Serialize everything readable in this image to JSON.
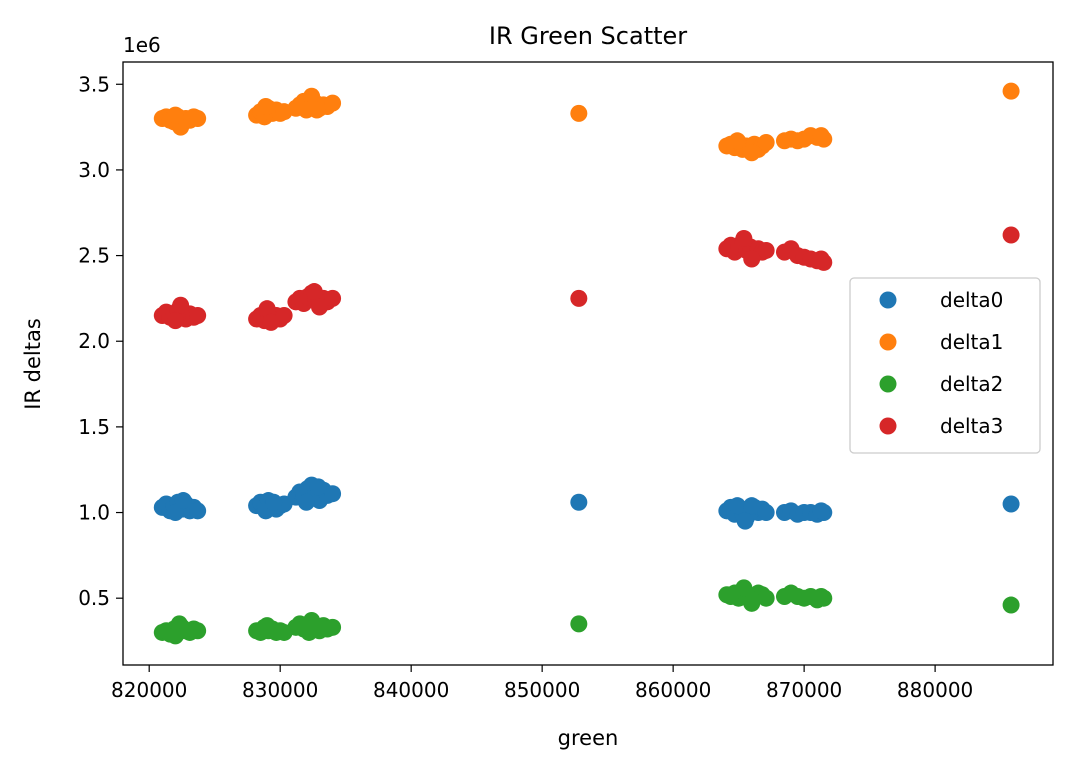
{
  "chart_data": {
    "type": "scatter",
    "title": "IR Green Scatter",
    "xlabel": "green",
    "ylabel": "IR deltas",
    "y_offset_text": "1e6",
    "xlim": [
      818000,
      889000
    ],
    "ylim": [
      0.11,
      3.63
    ],
    "x_ticks": [
      820000,
      830000,
      840000,
      850000,
      860000,
      870000,
      880000
    ],
    "x_tick_labels": [
      "820000",
      "830000",
      "840000",
      "850000",
      "860000",
      "870000",
      "880000"
    ],
    "y_ticks": [
      0.5,
      1.0,
      1.5,
      2.0,
      2.5,
      3.0,
      3.5
    ],
    "y_tick_labels": [
      "0.5",
      "1.0",
      "1.5",
      "2.0",
      "2.5",
      "3.0",
      "3.5"
    ],
    "grid": false,
    "legend_position": "center-right",
    "series": [
      {
        "name": "delta0",
        "color": "#1f77b4",
        "points": [
          [
            821000,
            1.03
          ],
          [
            821300,
            1.05
          ],
          [
            821600,
            1.01
          ],
          [
            821900,
            1.04
          ],
          [
            822200,
            1.06
          ],
          [
            822500,
            1.02
          ],
          [
            822800,
            1.05
          ],
          [
            823100,
            1.01
          ],
          [
            823400,
            1.03
          ],
          [
            823700,
            1.01
          ],
          [
            822000,
            1.0
          ],
          [
            822600,
            1.07
          ],
          [
            828200,
            1.04
          ],
          [
            828500,
            1.06
          ],
          [
            828800,
            1.03
          ],
          [
            829100,
            1.07
          ],
          [
            829400,
            1.05
          ],
          [
            829700,
            1.02
          ],
          [
            830000,
            1.04
          ],
          [
            830300,
            1.05
          ],
          [
            828900,
            1.01
          ],
          [
            829500,
            1.06
          ],
          [
            831200,
            1.09
          ],
          [
            831500,
            1.12
          ],
          [
            831800,
            1.1
          ],
          [
            832100,
            1.14
          ],
          [
            832400,
            1.16
          ],
          [
            832700,
            1.11
          ],
          [
            833000,
            1.07
          ],
          [
            833300,
            1.13
          ],
          [
            833600,
            1.1
          ],
          [
            834000,
            1.11
          ],
          [
            832000,
            1.06
          ],
          [
            832900,
            1.15
          ],
          [
            852800,
            1.06
          ],
          [
            864100,
            1.01
          ],
          [
            864400,
            1.03
          ],
          [
            864700,
            0.99
          ],
          [
            865000,
            1.02
          ],
          [
            865300,
            1.0
          ],
          [
            865600,
            0.97
          ],
          [
            865900,
            1.01
          ],
          [
            866200,
            1.03
          ],
          [
            866500,
            1.0
          ],
          [
            866800,
            1.02
          ],
          [
            867100,
            1.0
          ],
          [
            865500,
            0.95
          ],
          [
            864900,
            1.04
          ],
          [
            866000,
            1.04
          ],
          [
            868500,
            1.0
          ],
          [
            869000,
            1.01
          ],
          [
            869500,
            0.99
          ],
          [
            870000,
            1.0
          ],
          [
            870500,
            1.0
          ],
          [
            871000,
            0.99
          ],
          [
            871500,
            1.0
          ],
          [
            871300,
            1.01
          ],
          [
            885800,
            1.05
          ]
        ]
      },
      {
        "name": "delta1",
        "color": "#ff7f0e",
        "points": [
          [
            821000,
            3.3
          ],
          [
            821300,
            3.31
          ],
          [
            821600,
            3.29
          ],
          [
            821900,
            3.28
          ],
          [
            822200,
            3.31
          ],
          [
            822500,
            3.27
          ],
          [
            822800,
            3.3
          ],
          [
            823100,
            3.29
          ],
          [
            823400,
            3.31
          ],
          [
            823700,
            3.3
          ],
          [
            822400,
            3.25
          ],
          [
            822000,
            3.32
          ],
          [
            828200,
            3.32
          ],
          [
            828500,
            3.34
          ],
          [
            828800,
            3.31
          ],
          [
            829100,
            3.36
          ],
          [
            829400,
            3.33
          ],
          [
            829700,
            3.35
          ],
          [
            830000,
            3.33
          ],
          [
            830300,
            3.34
          ],
          [
            828900,
            3.37
          ],
          [
            831200,
            3.36
          ],
          [
            831500,
            3.38
          ],
          [
            831800,
            3.4
          ],
          [
            832100,
            3.37
          ],
          [
            832400,
            3.43
          ],
          [
            832700,
            3.39
          ],
          [
            833000,
            3.36
          ],
          [
            833300,
            3.38
          ],
          [
            833600,
            3.37
          ],
          [
            834000,
            3.39
          ],
          [
            832000,
            3.35
          ],
          [
            832800,
            3.35
          ],
          [
            852800,
            3.33
          ],
          [
            864100,
            3.14
          ],
          [
            864400,
            3.15
          ],
          [
            864700,
            3.13
          ],
          [
            865000,
            3.16
          ],
          [
            865300,
            3.12
          ],
          [
            865600,
            3.14
          ],
          [
            865900,
            3.13
          ],
          [
            866200,
            3.15
          ],
          [
            866500,
            3.12
          ],
          [
            866800,
            3.14
          ],
          [
            867100,
            3.16
          ],
          [
            864900,
            3.17
          ],
          [
            866000,
            3.1
          ],
          [
            868500,
            3.17
          ],
          [
            869000,
            3.18
          ],
          [
            869500,
            3.17
          ],
          [
            870000,
            3.18
          ],
          [
            870500,
            3.2
          ],
          [
            871000,
            3.19
          ],
          [
            871500,
            3.18
          ],
          [
            871300,
            3.2
          ],
          [
            885800,
            3.46
          ]
        ]
      },
      {
        "name": "delta2",
        "color": "#2ca02c",
        "points": [
          [
            821000,
            0.3
          ],
          [
            821300,
            0.31
          ],
          [
            821600,
            0.29
          ],
          [
            821900,
            0.32
          ],
          [
            822200,
            0.3
          ],
          [
            822500,
            0.33
          ],
          [
            822800,
            0.31
          ],
          [
            823100,
            0.3
          ],
          [
            823400,
            0.32
          ],
          [
            823700,
            0.31
          ],
          [
            822300,
            0.35
          ],
          [
            822000,
            0.28
          ],
          [
            828200,
            0.31
          ],
          [
            828500,
            0.3
          ],
          [
            828800,
            0.33
          ],
          [
            829100,
            0.31
          ],
          [
            829400,
            0.32
          ],
          [
            829700,
            0.3
          ],
          [
            830000,
            0.31
          ],
          [
            830300,
            0.3
          ],
          [
            829000,
            0.34
          ],
          [
            831200,
            0.33
          ],
          [
            831500,
            0.35
          ],
          [
            831800,
            0.32
          ],
          [
            832100,
            0.34
          ],
          [
            832400,
            0.37
          ],
          [
            832700,
            0.33
          ],
          [
            833000,
            0.31
          ],
          [
            833300,
            0.34
          ],
          [
            833600,
            0.32
          ],
          [
            834000,
            0.33
          ],
          [
            832200,
            0.3
          ],
          [
            852800,
            0.35
          ],
          [
            864100,
            0.52
          ],
          [
            864400,
            0.51
          ],
          [
            864700,
            0.53
          ],
          [
            865000,
            0.5
          ],
          [
            865300,
            0.54
          ],
          [
            865600,
            0.52
          ],
          [
            865900,
            0.49
          ],
          [
            866200,
            0.51
          ],
          [
            866500,
            0.53
          ],
          [
            866800,
            0.52
          ],
          [
            867100,
            0.5
          ],
          [
            865400,
            0.56
          ],
          [
            866000,
            0.47
          ],
          [
            868500,
            0.51
          ],
          [
            869000,
            0.53
          ],
          [
            869500,
            0.51
          ],
          [
            870000,
            0.5
          ],
          [
            870500,
            0.51
          ],
          [
            871000,
            0.49
          ],
          [
            871500,
            0.5
          ],
          [
            871300,
            0.51
          ],
          [
            885800,
            0.46
          ]
        ]
      },
      {
        "name": "delta3",
        "color": "#d62728",
        "points": [
          [
            821000,
            2.15
          ],
          [
            821300,
            2.17
          ],
          [
            821600,
            2.14
          ],
          [
            821900,
            2.16
          ],
          [
            822200,
            2.18
          ],
          [
            822500,
            2.15
          ],
          [
            822800,
            2.13
          ],
          [
            823100,
            2.16
          ],
          [
            823400,
            2.14
          ],
          [
            823700,
            2.15
          ],
          [
            822400,
            2.21
          ],
          [
            822000,
            2.12
          ],
          [
            828200,
            2.13
          ],
          [
            828500,
            2.15
          ],
          [
            828800,
            2.12
          ],
          [
            829100,
            2.16
          ],
          [
            829400,
            2.14
          ],
          [
            829700,
            2.15
          ],
          [
            830000,
            2.13
          ],
          [
            830300,
            2.15
          ],
          [
            829000,
            2.19
          ],
          [
            829300,
            2.11
          ],
          [
            831200,
            2.23
          ],
          [
            831500,
            2.25
          ],
          [
            831800,
            2.22
          ],
          [
            832100,
            2.26
          ],
          [
            832400,
            2.28
          ],
          [
            832700,
            2.24
          ],
          [
            833000,
            2.22
          ],
          [
            833300,
            2.25
          ],
          [
            833600,
            2.23
          ],
          [
            834000,
            2.25
          ],
          [
            832600,
            2.29
          ],
          [
            833000,
            2.2
          ],
          [
            852800,
            2.25
          ],
          [
            864100,
            2.54
          ],
          [
            864400,
            2.56
          ],
          [
            864700,
            2.52
          ],
          [
            865000,
            2.55
          ],
          [
            865300,
            2.58
          ],
          [
            865600,
            2.53
          ],
          [
            865900,
            2.55
          ],
          [
            866200,
            2.51
          ],
          [
            866500,
            2.54
          ],
          [
            866800,
            2.52
          ],
          [
            867100,
            2.53
          ],
          [
            865400,
            2.6
          ],
          [
            866000,
            2.48
          ],
          [
            868500,
            2.52
          ],
          [
            869000,
            2.54
          ],
          [
            869500,
            2.5
          ],
          [
            870000,
            2.49
          ],
          [
            870500,
            2.48
          ],
          [
            871000,
            2.47
          ],
          [
            871500,
            2.46
          ],
          [
            871300,
            2.48
          ],
          [
            885800,
            2.62
          ]
        ]
      }
    ]
  }
}
